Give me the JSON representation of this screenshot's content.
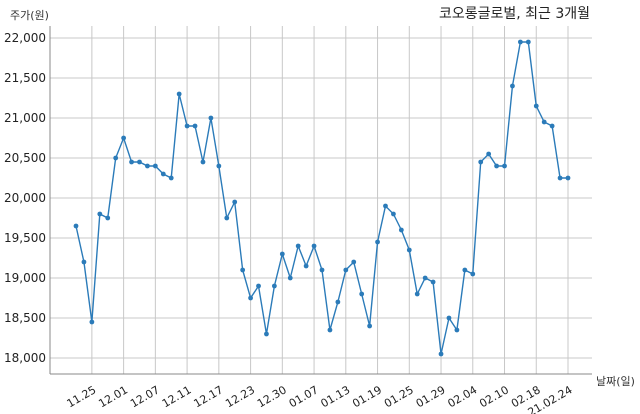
{
  "chart_data": {
    "type": "line",
    "title": "코오롱글로벌, 최근 3개월",
    "ylabel": "주가(원)",
    "xlabel": "날짜(일)",
    "ylim": [
      17800,
      22150
    ],
    "yticks": [
      18000,
      18500,
      19000,
      19500,
      20000,
      20500,
      21000,
      21500,
      22000
    ],
    "ytick_labels": [
      "18,000",
      "18,500",
      "19,000",
      "19,500",
      "20,000",
      "20,500",
      "21,000",
      "21,500",
      "22,000"
    ],
    "xticks": [
      {
        "index": 2,
        "label": "11.25"
      },
      {
        "index": 6,
        "label": "12.01"
      },
      {
        "index": 10,
        "label": "12.07"
      },
      {
        "index": 14,
        "label": "12.11"
      },
      {
        "index": 18,
        "label": "12.17"
      },
      {
        "index": 22,
        "label": "12.23"
      },
      {
        "index": 26,
        "label": "12.30"
      },
      {
        "index": 30,
        "label": "01.07"
      },
      {
        "index": 34,
        "label": "01.13"
      },
      {
        "index": 38,
        "label": "01.19"
      },
      {
        "index": 42,
        "label": "01.25"
      },
      {
        "index": 46,
        "label": "01.29"
      },
      {
        "index": 50,
        "label": "02.04"
      },
      {
        "index": 54,
        "label": "02.10"
      },
      {
        "index": 58,
        "label": "02.18"
      },
      {
        "index": 62,
        "label": "21.02.24"
      }
    ],
    "grid": true,
    "color": "#2b7bb9",
    "values": [
      19650,
      19200,
      18450,
      19800,
      19750,
      20500,
      20750,
      20450,
      20450,
      20400,
      20400,
      20300,
      20250,
      21300,
      20900,
      20900,
      20450,
      21000,
      20400,
      19750,
      19950,
      19100,
      18750,
      18900,
      18300,
      18900,
      19300,
      19000,
      19400,
      19150,
      19400,
      19100,
      18350,
      18700,
      19100,
      19200,
      18800,
      18400,
      19450,
      19900,
      19800,
      19600,
      19350,
      18800,
      19000,
      18950,
      18050,
      18500,
      18350,
      19100,
      19050,
      20450,
      20550,
      20400,
      20400,
      21400,
      21950,
      21950,
      21150,
      20950,
      20900,
      20250,
      20250
    ]
  }
}
